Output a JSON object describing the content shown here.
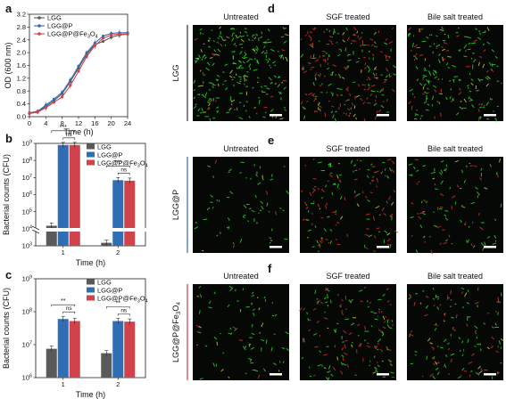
{
  "panel_letters": [
    "a",
    "b",
    "c",
    "d",
    "e",
    "f"
  ],
  "colors": {
    "LGG": "#5a5a5a",
    "LGG@P": "#2f6db5",
    "LGG@P@Fe3O4": "#d0434a",
    "micro_green": "#2fd12f",
    "micro_red": "#d23030",
    "sample_line_LGG": "#333333",
    "sample_line_LGGP": "#2f6db5",
    "sample_line_LGGPFe": "#c8404a"
  },
  "chart_data": [
    {
      "id": "a",
      "type": "line",
      "xlabel": "Time (h)",
      "ylabel": "OD (600 nm)",
      "xlim": [
        0,
        24
      ],
      "ylim": [
        0,
        3.2
      ],
      "xticks": [
        "0",
        "4",
        "8",
        "12",
        "16",
        "20",
        "24"
      ],
      "yticks": [
        "0.0",
        "0.4",
        "0.8",
        "1.2",
        "1.6",
        "2.0",
        "2.4",
        "2.8",
        "3.2"
      ],
      "legend_position": "top-left",
      "series": [
        {
          "name": "LGG",
          "x": [
            0,
            2,
            4,
            6,
            8,
            10,
            12,
            14,
            16,
            18,
            20,
            22,
            24
          ],
          "y": [
            0.1,
            0.15,
            0.32,
            0.5,
            0.72,
            1.1,
            1.52,
            1.95,
            2.25,
            2.35,
            2.48,
            2.55,
            2.58
          ]
        },
        {
          "name": "LGG@P",
          "x": [
            0,
            2,
            4,
            6,
            8,
            10,
            12,
            14,
            16,
            18,
            20,
            22,
            24
          ],
          "y": [
            0.12,
            0.17,
            0.36,
            0.55,
            0.76,
            1.14,
            1.58,
            2.0,
            2.3,
            2.52,
            2.6,
            2.62,
            2.62
          ]
        },
        {
          "name": "LGG@P@Fe3O4",
          "x": [
            0,
            2,
            4,
            6,
            8,
            10,
            12,
            14,
            16,
            18,
            20,
            22,
            24
          ],
          "y": [
            0.1,
            0.14,
            0.28,
            0.45,
            0.62,
            0.98,
            1.42,
            1.88,
            2.22,
            2.45,
            2.55,
            2.58,
            2.58
          ]
        }
      ]
    },
    {
      "id": "b",
      "type": "bar",
      "xlabel": "Time (h)",
      "ylabel": "Bacterial counts (CFU)",
      "yscale": "log",
      "axis_break": true,
      "categories": [
        "1",
        "2"
      ],
      "yticks": [
        "10^3",
        "10^4",
        "10^5",
        "10^6",
        "10^7",
        "10^8",
        "10^9"
      ],
      "legend_position": "top-right",
      "series": [
        {
          "name": "LGG",
          "values": [
            15000,
            1500
          ]
        },
        {
          "name": "LGG@P",
          "values": [
            800000000,
            7000000
          ]
        },
        {
          "name": "LGG@P@Fe3O4",
          "values": [
            800000000,
            6500000
          ]
        }
      ],
      "significance": [
        {
          "category": "1",
          "pairs": [
            {
              "label": "***"
            },
            {
              "label": "ns"
            }
          ]
        },
        {
          "category": "2",
          "pairs": [
            {
              "label": "***"
            },
            {
              "label": "ns"
            }
          ]
        }
      ]
    },
    {
      "id": "c",
      "type": "bar",
      "xlabel": "Time (h)",
      "ylabel": "Bacterial counts (CFU)",
      "yscale": "log",
      "ylim": [
        1000000,
        1000000000
      ],
      "categories": [
        "1",
        "2"
      ],
      "yticks": [
        "10^6",
        "10^7",
        "10^8",
        "10^9"
      ],
      "legend_position": "top-right",
      "series": [
        {
          "name": "LGG",
          "values": [
            7500000,
            5500000
          ]
        },
        {
          "name": "LGG@P",
          "values": [
            60000000,
            52000000
          ]
        },
        {
          "name": "LGG@P@Fe3O4",
          "values": [
            52000000,
            50000000
          ]
        }
      ],
      "significance": [
        {
          "category": "1",
          "pairs": [
            {
              "label": "**"
            },
            {
              "label": "ns"
            }
          ]
        },
        {
          "category": "2",
          "pairs": [
            {
              "label": "**"
            },
            {
              "label": "ns"
            }
          ]
        }
      ]
    }
  ],
  "legend_labels": [
    "LGG",
    "LGG@P",
    "LGG@P@Fe3O4"
  ],
  "micrographs": {
    "column_headers": [
      "Untreated",
      "SGF treated",
      "Bile salt treated"
    ],
    "rows": [
      {
        "letter": "d",
        "label": "LGG",
        "density": [
          1.0,
          0.9,
          0.75
        ],
        "red": [
          0.05,
          0.55,
          0.2
        ]
      },
      {
        "letter": "e",
        "label": "LGG@P",
        "density": [
          0.25,
          0.55,
          0.4
        ],
        "red": [
          0.05,
          0.45,
          0.3
        ]
      },
      {
        "letter": "f",
        "label": "LGG@P@Fe3O4",
        "density": [
          0.3,
          0.6,
          0.5
        ],
        "red": [
          0.05,
          0.45,
          0.35
        ]
      }
    ]
  }
}
